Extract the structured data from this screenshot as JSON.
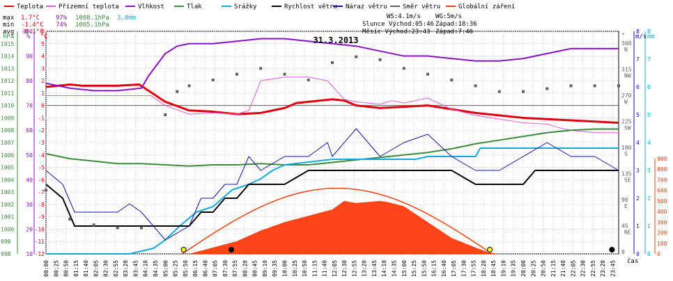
{
  "legend": {
    "items": [
      {
        "label": "Teplota",
        "color": "#e0000d"
      },
      {
        "label": "Přízemní teplota",
        "color": "#e05ae0"
      },
      {
        "label": "Vlhkost",
        "color": "#8a10c8"
      },
      {
        "label": "Tlak",
        "color": "#3a8a3a"
      },
      {
        "label": "Srážky",
        "color": "#10a8e0"
      },
      {
        "label": "Rychlost větru",
        "color": "#000000"
      },
      {
        "label": "Náraz větru",
        "color": "#1010a0"
      },
      {
        "label": "Směr větru",
        "color": "#606060"
      },
      {
        "label": "Globální záření",
        "color": "#f04010"
      }
    ]
  },
  "stats": {
    "max_label": "max",
    "max_temp": "1.7°C",
    "max_hum": "97%",
    "max_press": "1008.1hPa",
    "rain_total": "3.8mm",
    "min_label": "min",
    "min_temp": "-1.4°C",
    "min_hum": "74%",
    "min_press": "1005.1hPa",
    "avg_label": "avg",
    "avg_temp": "-0.1°C"
  },
  "info": {
    "ws": "WS:4.1m/s",
    "wg": "WG:5m/s",
    "slunce": "Slunce Východ:05:46",
    "slunce_zapad": "Západ:18:36",
    "mesic": "Měsíc  Východ:23:43",
    "mesic_zapad": "Západ:7:46"
  },
  "chart_data": {
    "type": "line",
    "title": "31.3.2013",
    "x_axis_label": "čas",
    "x_ticks": [
      "00:00",
      "00:25",
      "00:50",
      "01:15",
      "01:40",
      "02:05",
      "02:30",
      "02:55",
      "03:20",
      "03:45",
      "04:10",
      "04:35",
      "05:00",
      "05:25",
      "05:50",
      "06:15",
      "06:40",
      "07:05",
      "07:30",
      "07:55",
      "08:20",
      "08:45",
      "09:10",
      "09:35",
      "10:00",
      "10:25",
      "10:50",
      "11:15",
      "11:40",
      "12:05",
      "12:30",
      "12:55",
      "13:20",
      "13:45",
      "14:10",
      "14:35",
      "15:00",
      "15:25",
      "15:50",
      "16:15",
      "16:40",
      "17:05",
      "17:30",
      "17:55",
      "18:20",
      "18:45",
      "19:10",
      "19:35",
      "20:00",
      "20:25",
      "20:50",
      "21:15",
      "21:40",
      "22:05",
      "22:30",
      "22:55",
      "23:20",
      "23:45"
    ],
    "axes": {
      "pressure": {
        "unit": "hPa",
        "range": [
          998,
          1016
        ],
        "ticks": [
          "998",
          "999",
          "1000",
          "1001",
          "1002",
          "1003",
          "1004",
          "1005",
          "1006",
          "1007",
          "1008",
          "1009",
          "1010",
          "1011",
          "1012",
          "1013",
          "1014",
          "1015"
        ]
      },
      "humidity": {
        "unit": "%",
        "range": [
          10,
          100
        ],
        "ticks": [
          "10",
          "20",
          "30",
          "40",
          "50",
          "60",
          "70",
          "80",
          "90",
          "100"
        ]
      },
      "temperature": {
        "unit": "°C",
        "range": [
          -12,
          6
        ],
        "ticks": [
          "-12",
          "-11",
          "-10",
          "-9",
          "-8",
          "-7",
          "-6",
          "-5",
          "-4",
          "-3",
          "-2",
          "-1",
          "0",
          "1",
          "2",
          "3",
          "4",
          "5",
          "6"
        ]
      },
      "direction": {
        "unit": "°",
        "ticks": [
          [
            "0",
            ""
          ],
          [
            "45",
            "NE"
          ],
          [
            "90",
            "E"
          ],
          [
            "135",
            "SE"
          ],
          [
            "180",
            "S"
          ],
          [
            "225",
            "SW"
          ],
          [
            "270",
            "W"
          ],
          [
            "315",
            "NW"
          ],
          [
            "360",
            "N"
          ]
        ]
      },
      "wind": {
        "unit": "m/s",
        "range": [
          0,
          8
        ],
        "ticks": [
          "0",
          "1",
          "2",
          "3",
          "4",
          "5",
          "6",
          "7",
          "8"
        ]
      },
      "rain": {
        "unit": "mm",
        "range": [
          0,
          8
        ],
        "ticks": [
          "0",
          "1",
          "2",
          "3",
          "4",
          "5",
          "6",
          "7",
          "8"
        ]
      },
      "radiation": {
        "range": [
          0,
          900
        ],
        "ticks": [
          "0",
          "100",
          "200",
          "300",
          "400",
          "500",
          "600",
          "700",
          "800",
          "900"
        ]
      }
    },
    "series": [
      {
        "name": "Teplota",
        "axis": "temperature",
        "points": [
          [
            0,
            1.5
          ],
          [
            0.5,
            1.6
          ],
          [
            1,
            1.7
          ],
          [
            1.5,
            1.6
          ],
          [
            2,
            1.6
          ],
          [
            3,
            1.6
          ],
          [
            3.9,
            1.7
          ],
          [
            4.3,
            1.2
          ],
          [
            5,
            0.3
          ],
          [
            6,
            -0.4
          ],
          [
            7,
            -0.5
          ],
          [
            8,
            -0.7
          ],
          [
            9,
            -0.6
          ],
          [
            10,
            -0.2
          ],
          [
            10.5,
            0.2
          ],
          [
            11,
            0.3
          ],
          [
            12,
            0.5
          ],
          [
            12.5,
            0.4
          ],
          [
            13,
            0.0
          ],
          [
            14,
            -0.2
          ],
          [
            15,
            -0.1
          ],
          [
            16,
            0.0
          ],
          [
            17,
            -0.3
          ],
          [
            18,
            -0.6
          ],
          [
            19,
            -0.8
          ],
          [
            20,
            -1.0
          ],
          [
            21,
            -1.1
          ],
          [
            22,
            -1.2
          ],
          [
            23,
            -1.3
          ],
          [
            24,
            -1.4
          ]
        ]
      },
      {
        "name": "Přízemní teplota",
        "axis": "temperature",
        "points": [
          [
            0,
            0.8
          ],
          [
            1,
            0.8
          ],
          [
            2,
            0.8
          ],
          [
            3,
            0.8
          ],
          [
            3.5,
            0.8
          ],
          [
            4,
            0.8
          ],
          [
            4.2,
            0.8
          ],
          [
            4.4,
            0.8
          ],
          [
            5,
            0.0
          ],
          [
            6,
            -0.7
          ],
          [
            7,
            -0.6
          ],
          [
            8,
            -0.7
          ],
          [
            8.5,
            -0.4
          ],
          [
            9,
            2.0
          ],
          [
            10,
            2.3
          ],
          [
            11,
            2.3
          ],
          [
            11.8,
            2.0
          ],
          [
            12.5,
            0.5
          ],
          [
            13,
            0.3
          ],
          [
            14,
            0.1
          ],
          [
            14.5,
            0.4
          ],
          [
            15,
            0.2
          ],
          [
            16,
            0.6
          ],
          [
            17,
            -0.3
          ],
          [
            18,
            -0.8
          ],
          [
            19,
            -1.1
          ],
          [
            20,
            -1.4
          ],
          [
            21,
            -1.5
          ],
          [
            21.5,
            -1.8
          ],
          [
            22,
            -2.0
          ],
          [
            23,
            -2.2
          ],
          [
            24,
            -2.2
          ]
        ]
      },
      {
        "name": "Vlhkost",
        "axis": "humidity",
        "points": [
          [
            0,
            79
          ],
          [
            1,
            77
          ],
          [
            2,
            76
          ],
          [
            3,
            76
          ],
          [
            4,
            77
          ],
          [
            4.3,
            82
          ],
          [
            5,
            91
          ],
          [
            5.5,
            94
          ],
          [
            6,
            95
          ],
          [
            7,
            95
          ],
          [
            8,
            96
          ],
          [
            9,
            97
          ],
          [
            10,
            97
          ],
          [
            11,
            96
          ],
          [
            12,
            95
          ],
          [
            13,
            94
          ],
          [
            14,
            92
          ],
          [
            15,
            90
          ],
          [
            16,
            90
          ],
          [
            17,
            89
          ],
          [
            18,
            88
          ],
          [
            19,
            88
          ],
          [
            20,
            89
          ],
          [
            21,
            91
          ],
          [
            22,
            93
          ],
          [
            23,
            93
          ],
          [
            24,
            93
          ]
        ]
      },
      {
        "name": "Tlak",
        "axis": "pressure",
        "points": [
          [
            0,
            1006.1
          ],
          [
            1,
            1005.7
          ],
          [
            2,
            1005.5
          ],
          [
            3,
            1005.3
          ],
          [
            4,
            1005.3
          ],
          [
            5,
            1005.2
          ],
          [
            6,
            1005.1
          ],
          [
            7,
            1005.2
          ],
          [
            8,
            1005.2
          ],
          [
            9,
            1005.3
          ],
          [
            10,
            1005.2
          ],
          [
            11,
            1005.2
          ],
          [
            12,
            1005.4
          ],
          [
            13,
            1005.6
          ],
          [
            14,
            1005.8
          ],
          [
            15,
            1006.0
          ],
          [
            16,
            1006.2
          ],
          [
            17,
            1006.5
          ],
          [
            18,
            1006.9
          ],
          [
            19,
            1007.2
          ],
          [
            20,
            1007.5
          ],
          [
            21,
            1007.8
          ],
          [
            22,
            1008.0
          ],
          [
            23,
            1008.1
          ],
          [
            24,
            1008.1
          ]
        ]
      },
      {
        "name": "Srážky",
        "axis": "rain",
        "points": [
          [
            0,
            0
          ],
          [
            3.5,
            0
          ],
          [
            4,
            0.1
          ],
          [
            4.5,
            0.2
          ],
          [
            5,
            0.5
          ],
          [
            5.6,
            1.0
          ],
          [
            6.3,
            1.5
          ],
          [
            7,
            1.7
          ],
          [
            7.8,
            2.3
          ],
          [
            8.5,
            2.5
          ],
          [
            9,
            2.7
          ],
          [
            9.5,
            3.0
          ],
          [
            10,
            3.2
          ],
          [
            11,
            3.3
          ],
          [
            12,
            3.4
          ],
          [
            14,
            3.4
          ],
          [
            15.5,
            3.4
          ],
          [
            16,
            3.5
          ],
          [
            18,
            3.5
          ],
          [
            18.2,
            3.8
          ],
          [
            20,
            3.8
          ],
          [
            22,
            3.8
          ],
          [
            24,
            3.8
          ]
        ]
      },
      {
        "name": "Rychlost větru",
        "axis": "wind",
        "points": [
          [
            0,
            2.5
          ],
          [
            0.7,
            2.0
          ],
          [
            1.2,
            1.0
          ],
          [
            2,
            1.0
          ],
          [
            3,
            1.0
          ],
          [
            4,
            1.0
          ],
          [
            5,
            1.0
          ],
          [
            6,
            1.0
          ],
          [
            6.5,
            1.5
          ],
          [
            7,
            1.5
          ],
          [
            7.5,
            2.0
          ],
          [
            8,
            2.0
          ],
          [
            8.5,
            2.5
          ],
          [
            9,
            2.5
          ],
          [
            10,
            2.5
          ],
          [
            11,
            3.0
          ],
          [
            12,
            3.0
          ],
          [
            13,
            3.0
          ],
          [
            14,
            3.0
          ],
          [
            15,
            3.0
          ],
          [
            16,
            3.0
          ],
          [
            17,
            3.0
          ],
          [
            18,
            2.5
          ],
          [
            19,
            2.5
          ],
          [
            20,
            2.5
          ],
          [
            20.5,
            3.0
          ],
          [
            21,
            3.0
          ],
          [
            22,
            3.0
          ],
          [
            23,
            3.0
          ],
          [
            24,
            3.0
          ]
        ]
      },
      {
        "name": "Náraz větru",
        "axis": "wind",
        "points": [
          [
            0,
            3.0
          ],
          [
            0.7,
            2.5
          ],
          [
            1.2,
            1.5
          ],
          [
            2,
            1.5
          ],
          [
            3,
            1.5
          ],
          [
            3.5,
            1.8
          ],
          [
            4,
            1.5
          ],
          [
            5,
            0.5
          ],
          [
            6,
            1.0
          ],
          [
            6.5,
            2.0
          ],
          [
            7,
            2.0
          ],
          [
            7.5,
            2.5
          ],
          [
            8,
            2.5
          ],
          [
            8.5,
            3.5
          ],
          [
            9,
            3.0
          ],
          [
            10,
            3.5
          ],
          [
            11,
            3.5
          ],
          [
            11.8,
            4.0
          ],
          [
            12,
            3.5
          ],
          [
            13,
            4.5
          ],
          [
            14,
            3.5
          ],
          [
            15,
            4.0
          ],
          [
            16,
            4.3
          ],
          [
            17,
            3.5
          ],
          [
            18,
            3.0
          ],
          [
            19,
            3.0
          ],
          [
            20,
            3.5
          ],
          [
            21,
            4.0
          ],
          [
            22,
            3.5
          ],
          [
            23,
            3.5
          ],
          [
            24,
            3.0
          ]
        ]
      },
      {
        "name": "Směr větru",
        "axis": "direction",
        "points": [
          [
            0,
            110
          ],
          [
            1,
            60
          ],
          [
            2,
            50
          ],
          [
            3,
            45
          ],
          [
            4,
            45
          ],
          [
            5,
            240
          ],
          [
            5.5,
            280
          ],
          [
            6,
            290
          ],
          [
            7,
            300
          ],
          [
            8,
            310
          ],
          [
            9,
            320
          ],
          [
            10,
            310
          ],
          [
            11,
            300
          ],
          [
            12,
            330
          ],
          [
            13,
            340
          ],
          [
            14,
            335
          ],
          [
            15,
            320
          ],
          [
            16,
            310
          ],
          [
            17,
            300
          ],
          [
            18,
            290
          ],
          [
            19,
            280
          ],
          [
            20,
            280
          ],
          [
            21,
            285
          ],
          [
            22,
            290
          ],
          [
            23,
            290
          ],
          [
            24,
            290
          ]
        ]
      },
      {
        "name": "Globální záření",
        "axis": "radiation",
        "points": [
          [
            0,
            0
          ],
          [
            5.7,
            0
          ],
          [
            6,
            0
          ],
          [
            7,
            60
          ],
          [
            8,
            120
          ],
          [
            9,
            220
          ],
          [
            10,
            300
          ],
          [
            11,
            360
          ],
          [
            12,
            420
          ],
          [
            12.5,
            500
          ],
          [
            13,
            480
          ],
          [
            14,
            500
          ],
          [
            14.3,
            490
          ],
          [
            15,
            450
          ],
          [
            16,
            300
          ],
          [
            17,
            150
          ],
          [
            18,
            60
          ],
          [
            18.6,
            10
          ],
          [
            19,
            0
          ],
          [
            24,
            0
          ]
        ]
      }
    ]
  }
}
